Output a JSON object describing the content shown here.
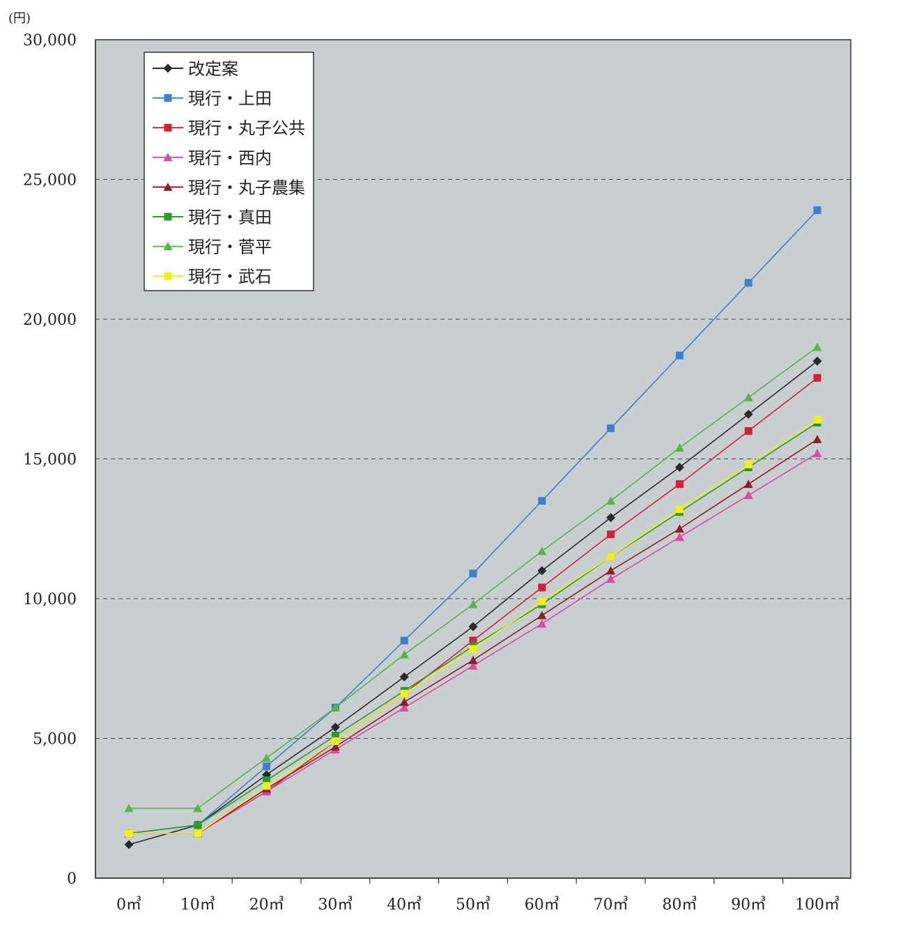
{
  "chart_data": {
    "type": "line",
    "unit_label": "(円)",
    "categories": [
      "0㎥",
      "10㎥",
      "20㎥",
      "30㎥",
      "40㎥",
      "50㎥",
      "60㎥",
      "70㎥",
      "80㎥",
      "90㎥",
      "100㎥"
    ],
    "y_ticks": [
      "30,000",
      "25,000",
      "20,000",
      "15,000",
      "10,000",
      "5,000",
      "0"
    ],
    "ylim": [
      0,
      30000
    ],
    "grid": "horizontal dashed",
    "legend_position": "top-left",
    "series": [
      {
        "name": "改定案",
        "color": "#2a2a2a",
        "marker": "diamond",
        "values": [
          1200,
          1900,
          3700,
          5400,
          7200,
          9000,
          11000,
          12900,
          14700,
          16600,
          18500
        ]
      },
      {
        "name": "現行・上田",
        "color": "#3f7fd0",
        "marker": "square",
        "values": [
          1600,
          1900,
          4000,
          6100,
          8500,
          10900,
          13500,
          16100,
          18700,
          21300,
          23900
        ]
      },
      {
        "name": "現行・丸子公共",
        "color": "#d0203a",
        "marker": "square",
        "values": [
          1600,
          1600,
          3100,
          4900,
          6600,
          8500,
          10400,
          12300,
          14100,
          16000,
          17900
        ]
      },
      {
        "name": "現行・西内",
        "color": "#d94c9e",
        "marker": "triangle",
        "values": [
          1600,
          1600,
          3100,
          4600,
          6100,
          7600,
          9100,
          10700,
          12200,
          13700,
          15200
        ]
      },
      {
        "name": "現行・丸子農集",
        "color": "#8b2028",
        "marker": "triangle",
        "values": [
          1600,
          1600,
          3200,
          4700,
          6300,
          7800,
          9400,
          11000,
          12500,
          14100,
          15700
        ]
      },
      {
        "name": "現行・真田",
        "color": "#2a9a2a",
        "marker": "square",
        "values": [
          1600,
          1900,
          3500,
          5100,
          6700,
          8300,
          9800,
          11500,
          13100,
          14700,
          16300
        ]
      },
      {
        "name": "現行・菅平",
        "color": "#55b64a",
        "marker": "triangle",
        "values": [
          2500,
          2500,
          4300,
          6100,
          8000,
          9800,
          11700,
          13500,
          15400,
          17200,
          19000
        ]
      },
      {
        "name": "現行・武石",
        "color": "#f2ee1c",
        "marker": "square",
        "values": [
          1600,
          1600,
          3300,
          4900,
          6600,
          8200,
          9900,
          11500,
          13200,
          14800,
          16400
        ]
      }
    ]
  }
}
